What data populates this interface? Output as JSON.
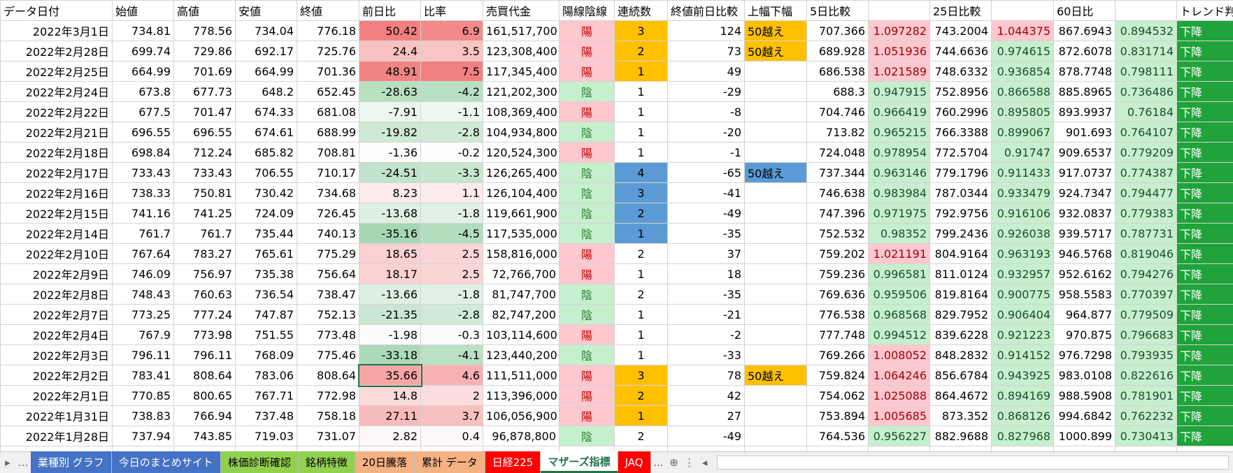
{
  "table": {
    "headers": [
      "データ日付",
      "始値",
      "高値",
      "安値",
      "終値",
      "前日比",
      "比率",
      "売買代金",
      "陽線陰線",
      "連続数",
      "終値前日比較",
      "上幅下幅",
      "5日比較",
      null,
      "25日比較",
      null,
      "60日比",
      null,
      "トレンド判"
    ],
    "rows": [
      [
        "2022年3月1日",
        734.81,
        778.56,
        734.04,
        776.18,
        50.42,
        6.9,
        "161,517,700",
        "陽",
        3,
        124,
        "50越え",
        707.366,
        1.097282,
        743.2004,
        1.044375,
        867.6943,
        0.894532,
        "下降"
      ],
      [
        "2022年2月28日",
        699.74,
        729.86,
        692.17,
        725.76,
        24.4,
        3.5,
        "123,308,400",
        "陽",
        2,
        73,
        "50越え",
        689.928,
        1.051936,
        744.6636,
        0.974615,
        872.6078,
        0.831714,
        "下降"
      ],
      [
        "2022年2月25日",
        664.99,
        701.69,
        664.99,
        701.36,
        48.91,
        7.5,
        "117,345,400",
        "陽",
        1,
        49,
        null,
        686.538,
        1.021589,
        748.6332,
        0.936854,
        878.7748,
        0.798111,
        "下降"
      ],
      [
        "2022年2月24日",
        673.8,
        677.73,
        648.2,
        652.45,
        -28.63,
        -4.2,
        "121,202,300",
        "陰",
        1,
        -29,
        null,
        688.3,
        0.947915,
        752.8956,
        0.866588,
        885.8965,
        0.736486,
        "下降"
      ],
      [
        "2022年2月22日",
        677.5,
        701.47,
        674.33,
        681.08,
        -7.91,
        -1.1,
        "108,369,400",
        "陽",
        1,
        -8,
        null,
        704.746,
        0.966419,
        760.2996,
        0.895805,
        893.9937,
        0.76184,
        "下降"
      ],
      [
        "2022年2月21日",
        696.55,
        696.55,
        674.61,
        688.99,
        -19.82,
        -2.8,
        "104,934,800",
        "陰",
        1,
        -20,
        null,
        713.82,
        0.965215,
        766.3388,
        0.899067,
        901.693,
        0.764107,
        "下降"
      ],
      [
        "2022年2月18日",
        698.84,
        712.24,
        685.82,
        708.81,
        -1.36,
        -0.2,
        "120,524,300",
        "陽",
        1,
        -1,
        null,
        724.048,
        0.978954,
        772.5704,
        0.91747,
        909.6537,
        0.779209,
        "下降"
      ],
      [
        "2022年2月17日",
        733.43,
        733.43,
        706.55,
        710.17,
        -24.51,
        -3.3,
        "126,265,400",
        "陰",
        4,
        -65,
        "50越え",
        737.344,
        0.963146,
        779.1796,
        0.911433,
        917.0737,
        0.774387,
        "下降"
      ],
      [
        "2022年2月16日",
        738.33,
        750.81,
        730.42,
        734.68,
        8.23,
        1.1,
        "126,104,400",
        "陰",
        3,
        -41,
        null,
        746.638,
        0.983984,
        787.0344,
        0.933479,
        924.7347,
        0.794477,
        "下降"
      ],
      [
        "2022年2月15日",
        741.16,
        741.25,
        724.09,
        726.45,
        -13.68,
        -1.8,
        "119,661,900",
        "陰",
        2,
        -49,
        null,
        747.396,
        0.971975,
        792.9756,
        0.916106,
        932.0837,
        0.779383,
        "下降"
      ],
      [
        "2022年2月14日",
        761.7,
        761.7,
        735.44,
        740.13,
        -35.16,
        -4.5,
        "117,535,000",
        "陰",
        1,
        -35,
        null,
        752.532,
        0.98352,
        799.2436,
        0.926038,
        939.5717,
        0.787731,
        "下降"
      ],
      [
        "2022年2月10日",
        767.64,
        783.27,
        765.61,
        775.29,
        18.65,
        2.5,
        "158,816,000",
        "陽",
        2,
        37,
        null,
        759.202,
        1.021191,
        804.9164,
        0.963193,
        946.5768,
        0.819046,
        "下降"
      ],
      [
        "2022年2月9日",
        746.09,
        756.97,
        735.38,
        756.64,
        18.17,
        2.5,
        "72,766,700",
        "陽",
        1,
        18,
        null,
        759.236,
        0.996581,
        811.0124,
        0.932957,
        952.6162,
        0.794276,
        "下降"
      ],
      [
        "2022年2月8日",
        748.43,
        760.63,
        736.54,
        738.47,
        -13.66,
        -1.8,
        "81,747,700",
        "陰",
        2,
        -35,
        null,
        769.636,
        0.959506,
        819.8164,
        0.900775,
        958.5583,
        0.770397,
        "下降"
      ],
      [
        "2022年2月7日",
        773.25,
        777.24,
        747.87,
        752.13,
        -21.35,
        -2.8,
        "82,747,200",
        "陰",
        1,
        -21,
        null,
        776.538,
        0.968568,
        829.7952,
        0.906404,
        964.877,
        0.779509,
        "下降"
      ],
      [
        "2022年2月4日",
        767.9,
        773.98,
        751.55,
        773.48,
        -1.98,
        -0.3,
        "103,114,600",
        "陽",
        1,
        -2,
        null,
        777.748,
        0.994512,
        839.6228,
        0.921223,
        970.875,
        0.796683,
        "下降"
      ],
      [
        "2022年2月3日",
        796.11,
        796.11,
        768.09,
        775.46,
        -33.18,
        -4.1,
        "123,440,200",
        "陰",
        1,
        -33,
        null,
        769.266,
        1.008052,
        848.2832,
        0.914152,
        976.7298,
        0.793935,
        "下降"
      ],
      [
        "2022年2月2日",
        783.41,
        808.64,
        783.06,
        808.64,
        35.66,
        4.6,
        "111,511,000",
        "陽",
        3,
        78,
        "50越え",
        759.824,
        1.064246,
        856.6784,
        0.943925,
        983.0108,
        0.822616,
        "下降"
      ],
      [
        "2022年2月1日",
        770.85,
        800.65,
        767.71,
        772.98,
        14.8,
        2,
        "113,396,000",
        "陽",
        2,
        42,
        null,
        754.062,
        1.025088,
        864.4672,
        0.894169,
        988.5908,
        0.781901,
        "下降"
      ],
      [
        "2022年1月31日",
        738.83,
        766.94,
        737.48,
        758.18,
        27.11,
        3.7,
        "106,056,900",
        "陽",
        1,
        27,
        null,
        753.894,
        1.005685,
        873.352,
        0.868126,
        994.6842,
        0.762232,
        "下降"
      ],
      [
        "2022年1月28日",
        737.94,
        743.85,
        719.03,
        731.07,
        2.82,
        0.4,
        "96,878,800",
        "陰",
        2,
        -49,
        null,
        764.536,
        0.956227,
        882.9688,
        0.827968,
        1000.899,
        0.730413,
        "下降"
      ]
    ]
  },
  "tabs": {
    "more_left": "...",
    "more_right": "...",
    "items": [
      {
        "label": "業種別 グラフ",
        "color": "#4472c4",
        "text_color": "#ffffff"
      },
      {
        "label": "今日のまとめサイト",
        "color": "#4472c4",
        "text_color": "#ffffff"
      },
      {
        "label": "株価診断確認",
        "color": "#92d050",
        "text_color": "#000000"
      },
      {
        "label": "銘柄特徴",
        "color": "#92d050",
        "text_color": "#000000"
      },
      {
        "label": "20日騰落",
        "color": "#f4b183",
        "text_color": "#000000"
      },
      {
        "label": "累計 データ",
        "color": "#f4b183",
        "text_color": "#000000"
      },
      {
        "label": "日経225",
        "color": "#ff0000",
        "text_color": "#ffffff"
      },
      {
        "label": "マザーズ指標",
        "color": "#ffffff",
        "text_color": "#217346",
        "active": true
      },
      {
        "label": "JAQ",
        "color": "#ff0000",
        "text_color": "#ffffff"
      }
    ]
  }
}
